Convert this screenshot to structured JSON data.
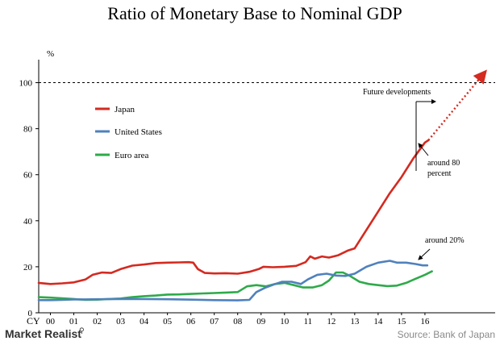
{
  "chart_data": {
    "type": "line",
    "title": "Ratio of Monetary Base to Nominal GDP",
    "ylabel": "%",
    "xlabel": "",
    "x_prefix": "CY",
    "ylim": [
      0,
      110
    ],
    "xlim": [
      1999.5,
      2019.0
    ],
    "y_ticks": [
      0,
      20,
      40,
      60,
      80,
      100
    ],
    "x_ticks": [
      {
        "label": "00",
        "x": 2000.0
      },
      {
        "label": "01",
        "x": 2001.0
      },
      {
        "label": "02",
        "x": 2002.0
      },
      {
        "label": "03",
        "x": 2003.0
      },
      {
        "label": "04",
        "x": 2004.0
      },
      {
        "label": "05",
        "x": 2005.0
      },
      {
        "label": "06",
        "x": 2006.0
      },
      {
        "label": "07",
        "x": 2007.0
      },
      {
        "label": "08",
        "x": 2008.0
      },
      {
        "label": "09",
        "x": 2009.0
      },
      {
        "label": "10",
        "x": 2010.0
      },
      {
        "label": "11",
        "x": 2011.0
      },
      {
        "label": "12",
        "x": 2012.0
      },
      {
        "label": "13",
        "x": 2013.0
      },
      {
        "label": "14",
        "x": 2014.0
      },
      {
        "label": "15",
        "x": 2015.0
      },
      {
        "label": "16",
        "x": 2016.0
      }
    ],
    "reference_line": {
      "y": 100,
      "style": "dashed"
    },
    "legend": {
      "placement": "top-left"
    },
    "series": [
      {
        "name": "Japan",
        "color": "#d42a20",
        "points": [
          [
            1999.5,
            13
          ],
          [
            2000.0,
            12.5
          ],
          [
            2000.5,
            12.8
          ],
          [
            2001.0,
            13.2
          ],
          [
            2001.5,
            14.5
          ],
          [
            2001.8,
            16.5
          ],
          [
            2002.2,
            17.5
          ],
          [
            2002.6,
            17.3
          ],
          [
            2003.0,
            19.0
          ],
          [
            2003.5,
            20.5
          ],
          [
            2004.0,
            21.0
          ],
          [
            2004.5,
            21.6
          ],
          [
            2005.0,
            21.8
          ],
          [
            2005.5,
            21.9
          ],
          [
            2005.9,
            22.0
          ],
          [
            2006.1,
            21.8
          ],
          [
            2006.3,
            19.0
          ],
          [
            2006.6,
            17.3
          ],
          [
            2007.0,
            17.1
          ],
          [
            2007.5,
            17.2
          ],
          [
            2008.0,
            17.0
          ],
          [
            2008.5,
            17.8
          ],
          [
            2008.9,
            19.0
          ],
          [
            2009.1,
            20.0
          ],
          [
            2009.5,
            19.8
          ],
          [
            2010.0,
            20.0
          ],
          [
            2010.5,
            20.4
          ],
          [
            2010.9,
            22.0
          ],
          [
            2011.1,
            24.5
          ],
          [
            2011.3,
            23.5
          ],
          [
            2011.6,
            24.5
          ],
          [
            2011.9,
            24.0
          ],
          [
            2012.3,
            25.0
          ],
          [
            2012.7,
            27.0
          ],
          [
            2013.0,
            28.0
          ],
          [
            2013.5,
            36.0
          ],
          [
            2014.0,
            44.0
          ],
          [
            2014.5,
            52.0
          ],
          [
            2015.0,
            59.0
          ],
          [
            2015.5,
            67.0
          ],
          [
            2016.0,
            74.0
          ],
          [
            2016.15,
            75.0
          ]
        ]
      },
      {
        "name": "United States",
        "color": "#4f81bd",
        "points": [
          [
            1999.5,
            5.5
          ],
          [
            2000.0,
            5.5
          ],
          [
            2000.5,
            5.6
          ],
          [
            2001.0,
            5.8
          ],
          [
            2001.5,
            5.8
          ],
          [
            2002.0,
            5.9
          ],
          [
            2003.0,
            6.0
          ],
          [
            2004.0,
            6.0
          ],
          [
            2005.0,
            5.9
          ],
          [
            2006.0,
            5.7
          ],
          [
            2007.0,
            5.5
          ],
          [
            2008.0,
            5.4
          ],
          [
            2008.5,
            5.6
          ],
          [
            2008.8,
            9.0
          ],
          [
            2009.2,
            11.0
          ],
          [
            2009.6,
            12.5
          ],
          [
            2009.9,
            13.5
          ],
          [
            2010.3,
            13.5
          ],
          [
            2010.7,
            12.5
          ],
          [
            2011.0,
            14.5
          ],
          [
            2011.4,
            16.5
          ],
          [
            2011.8,
            17.0
          ],
          [
            2012.2,
            16.2
          ],
          [
            2012.6,
            16.0
          ],
          [
            2013.0,
            17.0
          ],
          [
            2013.5,
            20.0
          ],
          [
            2014.0,
            21.8
          ],
          [
            2014.5,
            22.6
          ],
          [
            2014.8,
            21.8
          ],
          [
            2015.2,
            21.8
          ],
          [
            2015.6,
            21.2
          ],
          [
            2015.9,
            20.6
          ],
          [
            2016.1,
            20.6
          ]
        ]
      },
      {
        "name": "Euro area",
        "color": "#2eaa4a",
        "points": [
          [
            1999.5,
            6.8
          ],
          [
            2000.0,
            6.6
          ],
          [
            2000.5,
            6.3
          ],
          [
            2001.0,
            6.0
          ],
          [
            2001.5,
            5.6
          ],
          [
            2002.0,
            5.7
          ],
          [
            2002.5,
            6.0
          ],
          [
            2003.0,
            6.2
          ],
          [
            2003.5,
            6.8
          ],
          [
            2004.0,
            7.2
          ],
          [
            2004.5,
            7.5
          ],
          [
            2005.0,
            7.9
          ],
          [
            2005.5,
            8.0
          ],
          [
            2006.0,
            8.2
          ],
          [
            2006.5,
            8.4
          ],
          [
            2007.0,
            8.6
          ],
          [
            2007.5,
            8.8
          ],
          [
            2008.0,
            9.0
          ],
          [
            2008.4,
            11.5
          ],
          [
            2008.8,
            12.0
          ],
          [
            2009.2,
            11.5
          ],
          [
            2009.6,
            12.5
          ],
          [
            2010.0,
            13.0
          ],
          [
            2010.4,
            12.0
          ],
          [
            2010.8,
            11.0
          ],
          [
            2011.2,
            11.0
          ],
          [
            2011.6,
            12.0
          ],
          [
            2011.9,
            14.0
          ],
          [
            2012.2,
            17.5
          ],
          [
            2012.5,
            17.5
          ],
          [
            2012.8,
            16.0
          ],
          [
            2013.2,
            13.5
          ],
          [
            2013.6,
            12.5
          ],
          [
            2014.0,
            12.0
          ],
          [
            2014.4,
            11.6
          ],
          [
            2014.8,
            11.8
          ],
          [
            2015.2,
            13.0
          ],
          [
            2015.6,
            14.8
          ],
          [
            2016.0,
            16.5
          ],
          [
            2016.3,
            18.0
          ]
        ]
      }
    ],
    "projection": {
      "color": "#d42a20",
      "style": "dotted",
      "from": [
        2016.15,
        75.0
      ],
      "to": [
        2018.6,
        105.0
      ]
    },
    "annotations": {
      "future_developments": "Future developments",
      "japan_note_line1": "around 80",
      "japan_note_line2": "percent",
      "other_note": "around 20%"
    }
  },
  "footer": {
    "brand": "Market Realist",
    "source": "Source: Bank of Japan"
  },
  "colors": {
    "japan": "#d42a20",
    "united_states": "#4f81bd",
    "euro_area": "#2eaa4a",
    "brand_text": "#333333",
    "source_text": "#8a8a8a"
  }
}
